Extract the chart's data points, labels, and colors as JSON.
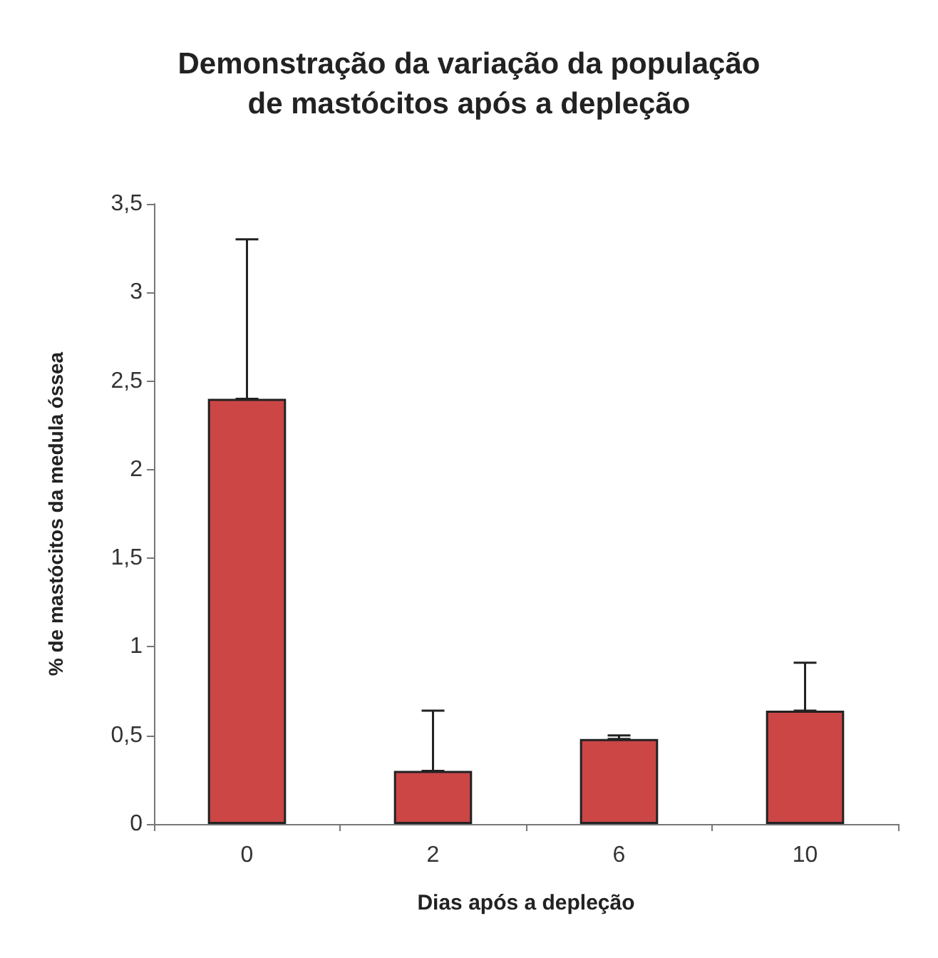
{
  "chart_data": {
    "type": "bar",
    "title": "Demonstração da variação da população\nde mastócitos após a depleção",
    "xlabel": "Dias após a depleção",
    "ylabel": "% de mastócitos da medula óssea",
    "categories": [
      "0",
      "2",
      "6",
      "10"
    ],
    "values": [
      2.4,
      0.3,
      0.48,
      0.64
    ],
    "color": "#cc4646",
    "errors": [
      [
        2.4,
        3.3
      ],
      [
        0.3,
        0.64
      ],
      [
        0.48,
        0.5
      ],
      [
        0.64,
        0.91
      ]
    ],
    "ylim": [
      0,
      3.5
    ],
    "yticks": [
      0,
      {
        "value": 0.5,
        "label": "0,5"
      },
      1,
      {
        "value": 1.5,
        "label": "1,5"
      },
      2,
      {
        "value": 2.5,
        "label": "2,5"
      },
      3,
      {
        "value": 3.5,
        "label": "3,5"
      }
    ],
    "grid": false
  }
}
